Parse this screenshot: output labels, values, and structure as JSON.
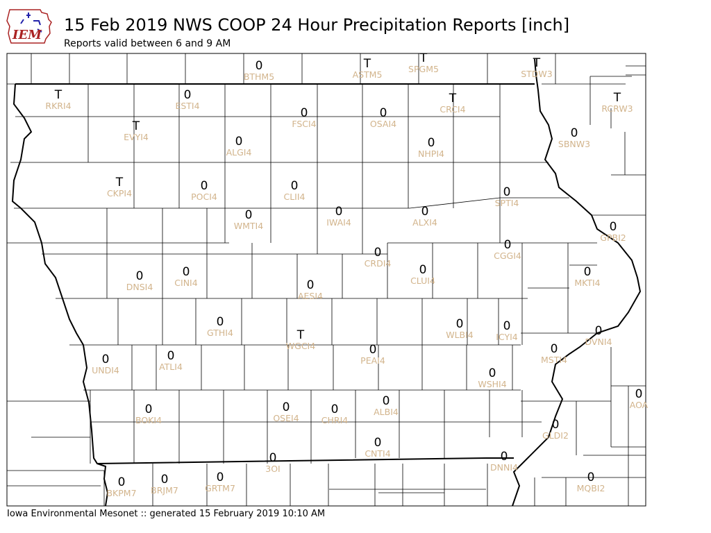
{
  "header": {
    "title": "15 Feb 2019 NWS COOP 24 Hour Precipitation Reports [inch]",
    "subtitle": "Reports valid between 6 and 9 AM"
  },
  "logo": {
    "text": "IEM"
  },
  "footer": {
    "text": "Iowa Environmental Mesonet :: generated 15 February 2019 10:10 AM"
  },
  "stations": [
    {
      "id": "BTHM5",
      "value": "0"
    },
    {
      "id": "ASTM5",
      "value": "T"
    },
    {
      "id": "SPGM5",
      "value": "T"
    },
    {
      "id": "STDW3",
      "value": "T"
    },
    {
      "id": "RKRI4",
      "value": "T"
    },
    {
      "id": "ESTI4",
      "value": "0"
    },
    {
      "id": "CRCI4",
      "value": "T"
    },
    {
      "id": "RCRW3",
      "value": "T"
    },
    {
      "id": "FSCI4",
      "value": "0"
    },
    {
      "id": "OSAI4",
      "value": "0"
    },
    {
      "id": "EVYI4",
      "value": "T"
    },
    {
      "id": "SBNW3",
      "value": "0"
    },
    {
      "id": "ALGI4",
      "value": "0"
    },
    {
      "id": "NHPI4",
      "value": "0"
    },
    {
      "id": "CKPI4",
      "value": "T"
    },
    {
      "id": "POCI4",
      "value": "0"
    },
    {
      "id": "CLII4",
      "value": "0"
    },
    {
      "id": "SPTI4",
      "value": "0"
    },
    {
      "id": "WMTI4",
      "value": "0"
    },
    {
      "id": "IWAI4",
      "value": "0"
    },
    {
      "id": "ALXI4",
      "value": "0"
    },
    {
      "id": "GPBI2",
      "value": "0"
    },
    {
      "id": "CRDI4",
      "value": "0"
    },
    {
      "id": "CGGI4",
      "value": "0"
    },
    {
      "id": "DNSI4",
      "value": "0"
    },
    {
      "id": "CINI4",
      "value": "0"
    },
    {
      "id": "CLUI4",
      "value": "0"
    },
    {
      "id": "MKTI4",
      "value": "0"
    },
    {
      "id": "AESI4",
      "value": "0"
    },
    {
      "id": "GTHI4",
      "value": "0"
    },
    {
      "id": "WGCI4",
      "value": "T"
    },
    {
      "id": "WLBI4",
      "value": "0"
    },
    {
      "id": "ICYI4",
      "value": "0"
    },
    {
      "id": "DVNI4",
      "value": "0"
    },
    {
      "id": "UNDI4",
      "value": "0"
    },
    {
      "id": "ATLI4",
      "value": "0"
    },
    {
      "id": "PEAI4",
      "value": "0"
    },
    {
      "id": "MSTI4",
      "value": "0"
    },
    {
      "id": "WSHI4",
      "value": "0"
    },
    {
      "id": "AOA",
      "value": "0"
    },
    {
      "id": "BOKI4",
      "value": "0"
    },
    {
      "id": "OSEI4",
      "value": "0"
    },
    {
      "id": "CHRI4",
      "value": "0"
    },
    {
      "id": "ALBI4",
      "value": "0"
    },
    {
      "id": "CNTI4",
      "value": "0"
    },
    {
      "id": "GLDI2",
      "value": "0"
    },
    {
      "id": "3OI",
      "value": "0"
    },
    {
      "id": "DNNI4",
      "value": "0"
    },
    {
      "id": "BKPM7",
      "value": "0"
    },
    {
      "id": "BRJM7",
      "value": "0"
    },
    {
      "id": "GRTM7",
      "value": "0"
    },
    {
      "id": "MQBI2",
      "value": "0"
    }
  ],
  "colors": {
    "value": "#000000",
    "station_id": "#d2b48c",
    "logo_text": "#2222aa",
    "logo_border": "#aa2222"
  }
}
